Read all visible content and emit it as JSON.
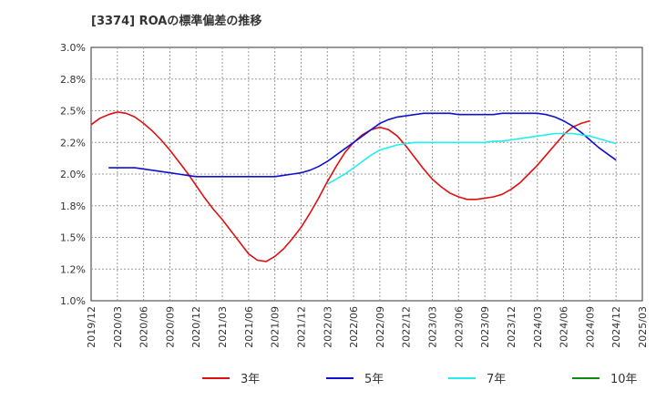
{
  "chart_data": {
    "type": "line",
    "title": "[3374]  ROAの標準偏差の推移",
    "xlabel": "",
    "ylabel": "",
    "ylim": [
      1.0,
      3.0
    ],
    "yticks": [
      "3.0%",
      "2.8%",
      "2.5%",
      "2.2%",
      "2.0%",
      "1.8%",
      "1.5%",
      "1.2%",
      "1.0%"
    ],
    "xticks": [
      "2019/12",
      "2020/03",
      "2020/06",
      "2020/09",
      "2020/12",
      "2021/03",
      "2021/06",
      "2021/09",
      "2021/12",
      "2022/03",
      "2022/06",
      "2022/09",
      "2022/12",
      "2023/03",
      "2023/06",
      "2023/09",
      "2023/12",
      "2024/03",
      "2024/06",
      "2024/09",
      "2024/12",
      "2025/03"
    ],
    "grid": true,
    "legend_position": "bottom",
    "series": [
      {
        "name": "3年",
        "color": "#dd1111",
        "points": [
          [
            "2019/12",
            2.39
          ],
          [
            "2020/01",
            2.44
          ],
          [
            "2020/02",
            2.47
          ],
          [
            "2020/03",
            2.49
          ],
          [
            "2020/04",
            2.48
          ],
          [
            "2020/05",
            2.45
          ],
          [
            "2020/06",
            2.4
          ],
          [
            "2020/07",
            2.34
          ],
          [
            "2020/08",
            2.27
          ],
          [
            "2020/09",
            2.19
          ],
          [
            "2020/10",
            2.1
          ],
          [
            "2020/11",
            2.01
          ],
          [
            "2020/12",
            1.91
          ],
          [
            "2021/01",
            1.81
          ],
          [
            "2021/02",
            1.72
          ],
          [
            "2021/03",
            1.64
          ],
          [
            "2021/04",
            1.55
          ],
          [
            "2021/05",
            1.46
          ],
          [
            "2021/06",
            1.37
          ],
          [
            "2021/07",
            1.32
          ],
          [
            "2021/08",
            1.31
          ],
          [
            "2021/09",
            1.35
          ],
          [
            "2021/10",
            1.41
          ],
          [
            "2021/11",
            1.49
          ],
          [
            "2021/12",
            1.58
          ],
          [
            "2022/01",
            1.69
          ],
          [
            "2022/02",
            1.81
          ],
          [
            "2022/03",
            1.94
          ],
          [
            "2022/04",
            2.06
          ],
          [
            "2022/05",
            2.17
          ],
          [
            "2022/06",
            2.25
          ],
          [
            "2022/07",
            2.31
          ],
          [
            "2022/08",
            2.35
          ],
          [
            "2022/09",
            2.37
          ],
          [
            "2022/10",
            2.35
          ],
          [
            "2022/11",
            2.3
          ],
          [
            "2022/12",
            2.22
          ],
          [
            "2023/01",
            2.13
          ],
          [
            "2023/02",
            2.04
          ],
          [
            "2023/03",
            1.96
          ],
          [
            "2023/04",
            1.9
          ],
          [
            "2023/05",
            1.85
          ],
          [
            "2023/06",
            1.82
          ],
          [
            "2023/07",
            1.8
          ],
          [
            "2023/08",
            1.8
          ],
          [
            "2023/09",
            1.81
          ],
          [
            "2023/10",
            1.82
          ],
          [
            "2023/11",
            1.84
          ],
          [
            "2023/12",
            1.88
          ],
          [
            "2024/01",
            1.93
          ],
          [
            "2024/02",
            2.0
          ],
          [
            "2024/03",
            2.07
          ],
          [
            "2024/04",
            2.15
          ],
          [
            "2024/05",
            2.23
          ],
          [
            "2024/06",
            2.31
          ],
          [
            "2024/07",
            2.37
          ],
          [
            "2024/08",
            2.4
          ],
          [
            "2024/09",
            2.42
          ]
        ]
      },
      {
        "name": "5年",
        "color": "#1111cc",
        "points": [
          [
            "2020/02",
            2.05
          ],
          [
            "2020/03",
            2.05
          ],
          [
            "2020/04",
            2.05
          ],
          [
            "2020/05",
            2.05
          ],
          [
            "2020/06",
            2.04
          ],
          [
            "2020/07",
            2.03
          ],
          [
            "2020/08",
            2.02
          ],
          [
            "2020/09",
            2.01
          ],
          [
            "2020/10",
            2.0
          ],
          [
            "2020/11",
            1.99
          ],
          [
            "2020/12",
            1.98
          ],
          [
            "2021/01",
            1.98
          ],
          [
            "2021/02",
            1.98
          ],
          [
            "2021/03",
            1.98
          ],
          [
            "2021/04",
            1.98
          ],
          [
            "2021/05",
            1.98
          ],
          [
            "2021/06",
            1.98
          ],
          [
            "2021/07",
            1.98
          ],
          [
            "2021/08",
            1.98
          ],
          [
            "2021/09",
            1.98
          ],
          [
            "2021/10",
            1.99
          ],
          [
            "2021/11",
            2.0
          ],
          [
            "2021/12",
            2.01
          ],
          [
            "2022/01",
            2.03
          ],
          [
            "2022/02",
            2.06
          ],
          [
            "2022/03",
            2.1
          ],
          [
            "2022/04",
            2.15
          ],
          [
            "2022/05",
            2.2
          ],
          [
            "2022/06",
            2.25
          ],
          [
            "2022/07",
            2.3
          ],
          [
            "2022/08",
            2.35
          ],
          [
            "2022/09",
            2.4
          ],
          [
            "2022/10",
            2.43
          ],
          [
            "2022/11",
            2.45
          ],
          [
            "2022/12",
            2.46
          ],
          [
            "2023/01",
            2.47
          ],
          [
            "2023/02",
            2.48
          ],
          [
            "2023/03",
            2.48
          ],
          [
            "2023/04",
            2.48
          ],
          [
            "2023/05",
            2.48
          ],
          [
            "2023/06",
            2.47
          ],
          [
            "2023/07",
            2.47
          ],
          [
            "2023/08",
            2.47
          ],
          [
            "2023/09",
            2.47
          ],
          [
            "2023/10",
            2.47
          ],
          [
            "2023/11",
            2.48
          ],
          [
            "2023/12",
            2.48
          ],
          [
            "2024/01",
            2.48
          ],
          [
            "2024/02",
            2.48
          ],
          [
            "2024/03",
            2.48
          ],
          [
            "2024/04",
            2.47
          ],
          [
            "2024/05",
            2.45
          ],
          [
            "2024/06",
            2.42
          ],
          [
            "2024/07",
            2.38
          ],
          [
            "2024/08",
            2.33
          ],
          [
            "2024/09",
            2.27
          ],
          [
            "2024/10",
            2.21
          ],
          [
            "2024/11",
            2.16
          ],
          [
            "2024/12",
            2.11
          ]
        ]
      },
      {
        "name": "7年",
        "color": "#22eeee",
        "points": [
          [
            "2022/03",
            1.92
          ],
          [
            "2022/04",
            1.96
          ],
          [
            "2022/05",
            2.0
          ],
          [
            "2022/06",
            2.05
          ],
          [
            "2022/07",
            2.1
          ],
          [
            "2022/08",
            2.15
          ],
          [
            "2022/09",
            2.19
          ],
          [
            "2022/10",
            2.21
          ],
          [
            "2022/11",
            2.23
          ],
          [
            "2022/12",
            2.24
          ],
          [
            "2023/01",
            2.25
          ],
          [
            "2023/02",
            2.25
          ],
          [
            "2023/03",
            2.25
          ],
          [
            "2023/04",
            2.25
          ],
          [
            "2023/05",
            2.25
          ],
          [
            "2023/06",
            2.25
          ],
          [
            "2023/07",
            2.25
          ],
          [
            "2023/08",
            2.25
          ],
          [
            "2023/09",
            2.25
          ],
          [
            "2023/10",
            2.26
          ],
          [
            "2023/11",
            2.26
          ],
          [
            "2023/12",
            2.27
          ],
          [
            "2024/01",
            2.28
          ],
          [
            "2024/02",
            2.29
          ],
          [
            "2024/03",
            2.3
          ],
          [
            "2024/04",
            2.31
          ],
          [
            "2024/05",
            2.32
          ],
          [
            "2024/06",
            2.32
          ],
          [
            "2024/07",
            2.32
          ],
          [
            "2024/08",
            2.31
          ],
          [
            "2024/09",
            2.3
          ],
          [
            "2024/10",
            2.28
          ],
          [
            "2024/11",
            2.26
          ],
          [
            "2024/12",
            2.24
          ]
        ]
      },
      {
        "name": "10年",
        "color": "#118811",
        "points": []
      }
    ]
  }
}
